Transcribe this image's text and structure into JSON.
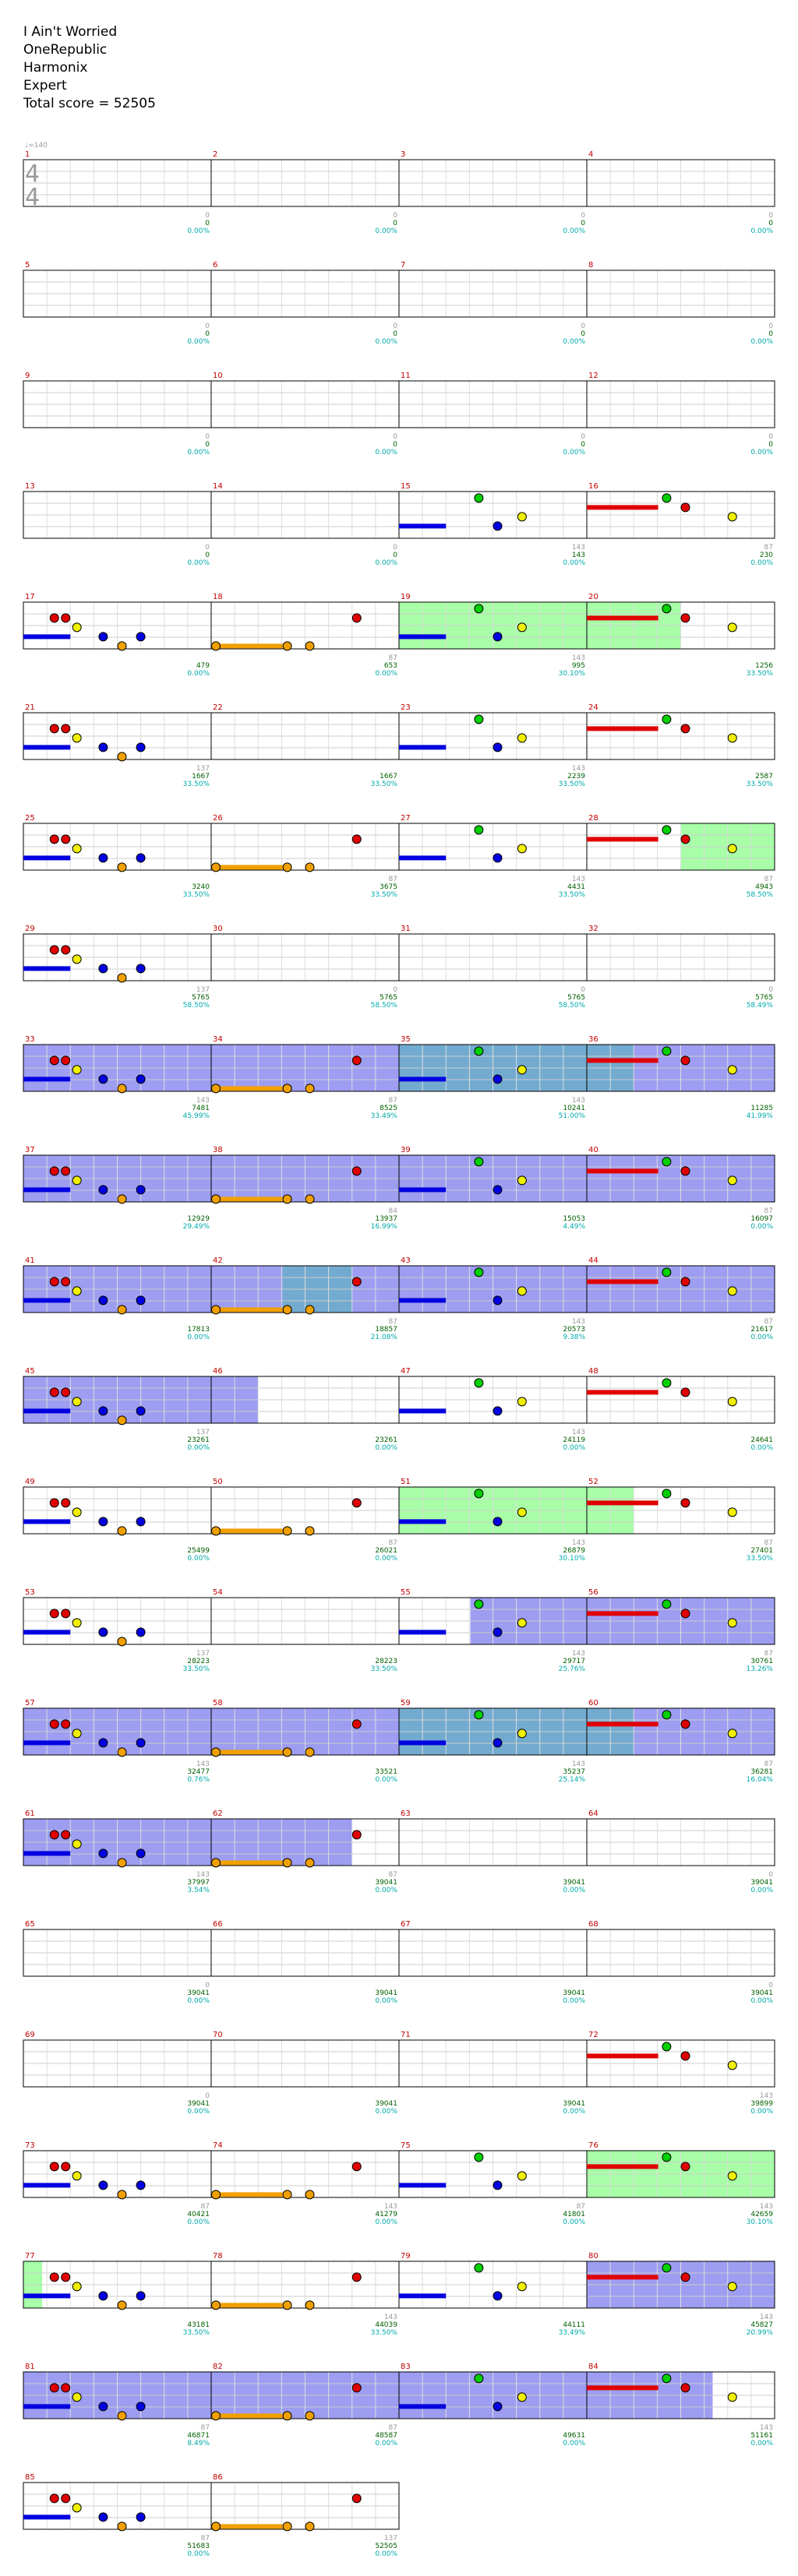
{
  "song": {
    "title": "I Ain't Worried",
    "artist": "OneRepublic",
    "charter": "Harmonix",
    "difficulty": "Expert",
    "total_score_label": "Total score = 52505"
  },
  "chart_data": {
    "type": "note-chart",
    "tempo_label": "♩=140",
    "time_signature": [
      "4",
      "4"
    ],
    "lane_colors": {
      "green": "#00d000",
      "red": "#e00000",
      "yellow": "#f0f000",
      "blue": "#0000e0",
      "orange": "#f0a000"
    },
    "overlay_colors": {
      "star_power": "#99ff99",
      "overdrive": "#8c8cf0",
      "combined": "#5a9cc8",
      "star_glow": "#ffffc0"
    },
    "label_colors": {
      "measure": "#c00000",
      "streak": "#999999",
      "score": "#006000",
      "percent": "#00aaaa"
    },
    "measures": [
      {
        "n": "1",
        "streak": "0",
        "score": "0",
        "pct": "0.00%"
      },
      {
        "n": "2",
        "streak": "0",
        "score": "0",
        "pct": "0.00%"
      },
      {
        "n": "3",
        "streak": "0",
        "score": "0",
        "pct": "0.00%"
      },
      {
        "n": "4",
        "streak": "0",
        "score": "0",
        "pct": "0.00%"
      },
      {
        "n": "5",
        "streak": "0",
        "score": "0",
        "pct": "0.00%"
      },
      {
        "n": "6",
        "streak": "0",
        "score": "0",
        "pct": "0.00%"
      },
      {
        "n": "7",
        "streak": "0",
        "score": "0",
        "pct": "0.00%"
      },
      {
        "n": "8",
        "streak": "0",
        "score": "0",
        "pct": "0.00%"
      },
      {
        "n": "9",
        "streak": "0",
        "score": "0",
        "pct": "0.00%"
      },
      {
        "n": "10",
        "streak": "0",
        "score": "0",
        "pct": "0.00%"
      },
      {
        "n": "11",
        "streak": "0",
        "score": "0",
        "pct": "0.00%"
      },
      {
        "n": "12",
        "streak": "0",
        "score": "0",
        "pct": "0.00%"
      },
      {
        "n": "13",
        "streak": "0",
        "score": "0",
        "pct": "0.00%"
      },
      {
        "n": "14",
        "streak": "0",
        "score": "0",
        "pct": "0.00%"
      },
      {
        "n": "15",
        "streak": "143",
        "score": "143",
        "pct": "0.00%"
      },
      {
        "n": "16",
        "streak": "87",
        "score": "230",
        "pct": "0.00%"
      },
      {
        "n": "17",
        "streak": "",
        "score": "479",
        "pct": "0.00%"
      },
      {
        "n": "18",
        "streak": "87",
        "score": "653",
        "pct": "0.00%"
      },
      {
        "n": "19",
        "streak": "143",
        "score": "995",
        "pct": "30.10%"
      },
      {
        "n": "20",
        "streak": "",
        "score": "1256",
        "pct": "33.50%"
      },
      {
        "n": "21",
        "streak": "137",
        "score": "1667",
        "pct": "33.50%"
      },
      {
        "n": "22",
        "streak": "",
        "score": "1667",
        "pct": "33.50%"
      },
      {
        "n": "23",
        "streak": "143",
        "score": "2239",
        "pct": "33.50%"
      },
      {
        "n": "24",
        "streak": "",
        "score": "2587",
        "pct": "33.50%"
      },
      {
        "n": "25",
        "streak": "",
        "score": "3240",
        "pct": "33.50%"
      },
      {
        "n": "26",
        "streak": "87",
        "score": "3675",
        "pct": "33.50%"
      },
      {
        "n": "27",
        "streak": "143",
        "score": "4431",
        "pct": "33.50%"
      },
      {
        "n": "28",
        "streak": "87",
        "score": "4943",
        "pct": "58.50%"
      },
      {
        "n": "29",
        "streak": "137",
        "score": "5765",
        "pct": "58.50%"
      },
      {
        "n": "30",
        "streak": "0",
        "score": "5765",
        "pct": "58.50%"
      },
      {
        "n": "31",
        "streak": "0",
        "score": "5765",
        "pct": "58.50%"
      },
      {
        "n": "32",
        "streak": "0",
        "score": "5765",
        "pct": "58.49%"
      },
      {
        "n": "33",
        "streak": "143",
        "score": "7481",
        "pct": "45.99%"
      },
      {
        "n": "34",
        "streak": "87",
        "score": "8525",
        "pct": "33.49%"
      },
      {
        "n": "35",
        "streak": "143",
        "score": "10241",
        "pct": "51.00%"
      },
      {
        "n": "36",
        "streak": "",
        "score": "11285",
        "pct": "41.99%"
      },
      {
        "n": "37",
        "streak": "",
        "score": "12929",
        "pct": "29.49%"
      },
      {
        "n": "38",
        "streak": "84",
        "score": "13937",
        "pct": "16.99%"
      },
      {
        "n": "39",
        "streak": "",
        "score": "15053",
        "pct": "4.49%"
      },
      {
        "n": "40",
        "streak": "87",
        "score": "16097",
        "pct": "0.00%"
      },
      {
        "n": "41",
        "streak": "",
        "score": "17813",
        "pct": "0.00%"
      },
      {
        "n": "42",
        "streak": "87",
        "score": "18857",
        "pct": "21.08%"
      },
      {
        "n": "43",
        "streak": "143",
        "score": "20573",
        "pct": "9.38%"
      },
      {
        "n": "44",
        "streak": "87",
        "score": "21617",
        "pct": "0.00%"
      },
      {
        "n": "45",
        "streak": "137",
        "score": "23261",
        "pct": "0.00%"
      },
      {
        "n": "46",
        "streak": "",
        "score": "23261",
        "pct": "0.00%"
      },
      {
        "n": "47",
        "streak": "143",
        "score": "24119",
        "pct": "0.00%"
      },
      {
        "n": "48",
        "streak": "",
        "score": "24641",
        "pct": "0.00%"
      },
      {
        "n": "49",
        "streak": "",
        "score": "25499",
        "pct": "0.00%"
      },
      {
        "n": "50",
        "streak": "87",
        "score": "26021",
        "pct": "0.00%"
      },
      {
        "n": "51",
        "streak": "143",
        "score": "26879",
        "pct": "30.10%"
      },
      {
        "n": "52",
        "streak": "87",
        "score": "27401",
        "pct": "33.50%"
      },
      {
        "n": "53",
        "streak": "137",
        "score": "28223",
        "pct": "33.50%"
      },
      {
        "n": "54",
        "streak": "",
        "score": "28223",
        "pct": "33.50%"
      },
      {
        "n": "55",
        "streak": "143",
        "score": "29717",
        "pct": "25.76%"
      },
      {
        "n": "56",
        "streak": "87",
        "score": "30761",
        "pct": "13.26%"
      },
      {
        "n": "57",
        "streak": "143",
        "score": "32477",
        "pct": "0.76%"
      },
      {
        "n": "58",
        "streak": "",
        "score": "33521",
        "pct": "0.00%"
      },
      {
        "n": "59",
        "streak": "143",
        "score": "35237",
        "pct": "25.14%"
      },
      {
        "n": "60",
        "streak": "87",
        "score": "36281",
        "pct": "16.04%"
      },
      {
        "n": "61",
        "streak": "143",
        "score": "37997",
        "pct": "3.54%"
      },
      {
        "n": "62",
        "streak": "87",
        "score": "39041",
        "pct": "0.00%"
      },
      {
        "n": "63",
        "streak": "",
        "score": "39041",
        "pct": "0.00%"
      },
      {
        "n": "64",
        "streak": "0",
        "score": "39041",
        "pct": "0.00%"
      },
      {
        "n": "65",
        "streak": "0",
        "score": "39041",
        "pct": "0.00%"
      },
      {
        "n": "66",
        "streak": "",
        "score": "39041",
        "pct": "0.00%"
      },
      {
        "n": "67",
        "streak": "",
        "score": "39041",
        "pct": "0.00%"
      },
      {
        "n": "68",
        "streak": "0",
        "score": "39041",
        "pct": "0.00%"
      },
      {
        "n": "69",
        "streak": "0",
        "score": "39041",
        "pct": "0.00%"
      },
      {
        "n": "70",
        "streak": "",
        "score": "39041",
        "pct": "0.00%"
      },
      {
        "n": "71",
        "streak": "",
        "score": "39041",
        "pct": "0.00%"
      },
      {
        "n": "72",
        "streak": "143",
        "score": "39899",
        "pct": "0.00%"
      },
      {
        "n": "73",
        "streak": "87",
        "score": "40421",
        "pct": "0.00%"
      },
      {
        "n": "74",
        "streak": "143",
        "score": "41279",
        "pct": "0.00%"
      },
      {
        "n": "75",
        "streak": "87",
        "score": "41801",
        "pct": "0.00%"
      },
      {
        "n": "76",
        "streak": "143",
        "score": "42659",
        "pct": "30.10%"
      },
      {
        "n": "77",
        "streak": "",
        "score": "43181",
        "pct": "33.50%"
      },
      {
        "n": "78",
        "streak": "143",
        "score": "44039",
        "pct": "33.50%"
      },
      {
        "n": "79",
        "streak": "",
        "score": "44111",
        "pct": "33.49%"
      },
      {
        "n": "80",
        "streak": "143",
        "score": "45827",
        "pct": "20.99%"
      },
      {
        "n": "81",
        "streak": "87",
        "score": "46871",
        "pct": "8.49%"
      },
      {
        "n": "82",
        "streak": "87",
        "score": "48587",
        "pct": "0.00%"
      },
      {
        "n": "83",
        "streak": "",
        "score": "49631",
        "pct": "0.00%"
      },
      {
        "n": "84",
        "streak": "143",
        "score": "51161",
        "pct": "0.00%"
      },
      {
        "n": "85",
        "streak": "87",
        "score": "51683",
        "pct": "0.00%"
      },
      {
        "n": "86",
        "streak": "137",
        "score": "52505",
        "pct": "0.00%"
      }
    ]
  }
}
